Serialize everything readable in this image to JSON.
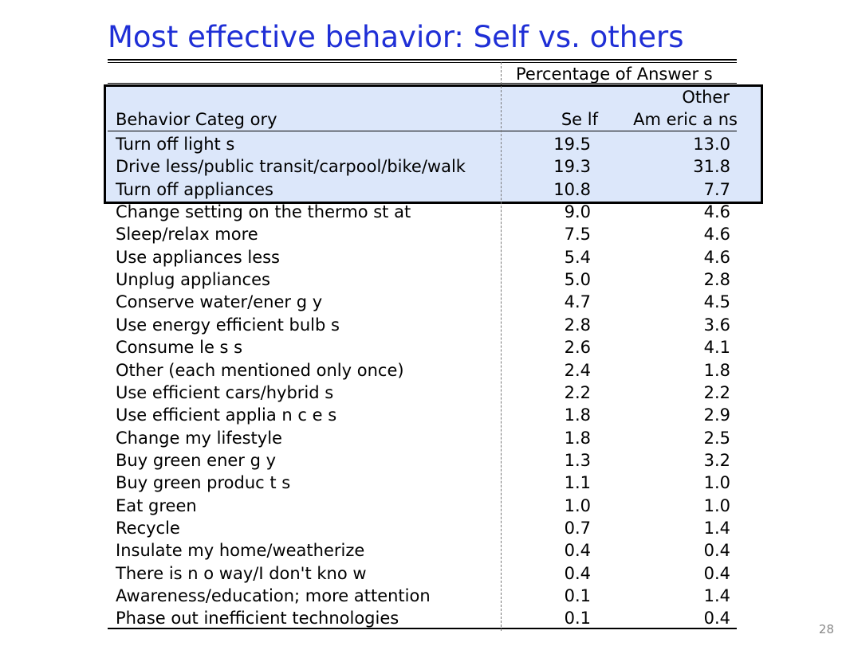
{
  "title": "Most effective behavior: Self vs. others",
  "page_number": "28",
  "table": {
    "super_header": "Percentage of Answer s",
    "columns": {
      "category": "Behavior Categ ory",
      "self": "Se lf",
      "other_line1": "Other",
      "other_line2": "Am eric a ns"
    },
    "rows": [
      {
        "category": "Turn off light s",
        "self": "19.5",
        "other": "13.0"
      },
      {
        "category": "Drive less/public transit/carpool/bike/walk",
        "self": "19.3",
        "other": "31.8"
      },
      {
        "category": "Turn off appliances",
        "self": "10.8",
        "other": "7.7"
      },
      {
        "category": "Change setting on the thermo st at",
        "self": "9.0",
        "other": "4.6"
      },
      {
        "category": "Sleep/relax more",
        "self": "7.5",
        "other": "4.6"
      },
      {
        "category": "Use appliances less",
        "self": "5.4",
        "other": "4.6"
      },
      {
        "category": "Unplug appliances",
        "self": "5.0",
        "other": "2.8"
      },
      {
        "category": "Conserve water/ener g y",
        "self": "4.7",
        "other": "4.5"
      },
      {
        "category": "Use energy efficient bulb s",
        "self": "2.8",
        "other": "3.6"
      },
      {
        "category": "Consume le s s",
        "self": "2.6",
        "other": "4.1"
      },
      {
        "category": "Other (each mentioned only once)",
        "self": "2.4",
        "other": "1.8"
      },
      {
        "category": "Use efficient cars/hybrid s",
        "self": "2.2",
        "other": "2.2"
      },
      {
        "category": "Use efficient applia n c e s",
        "self": "1.8",
        "other": "2.9"
      },
      {
        "category": "Change my lifestyle",
        "self": "1.8",
        "other": "2.5"
      },
      {
        "category": "Buy green ener g y",
        "self": "1.3",
        "other": "3.2"
      },
      {
        "category": "Buy green produc t s",
        "self": "1.1",
        "other": "1.0"
      },
      {
        "category": "Eat green",
        "self": "1.0",
        "other": "1.0"
      },
      {
        "category": "Recycle",
        "self": "0.7",
        "other": "1.4"
      },
      {
        "category": "Insulate my home/weatherize",
        "self": "0.4",
        "other": "0.4"
      },
      {
        "category": "There is n o way/I don't kno w",
        "self": "0.4",
        "other": "0.4"
      },
      {
        "category": "Awareness/education; more attention",
        "self": "0.1",
        "other": "1.4"
      },
      {
        "category": "Phase out inefficient technologies",
        "self": "0.1",
        "other": "0.4"
      }
    ]
  }
}
